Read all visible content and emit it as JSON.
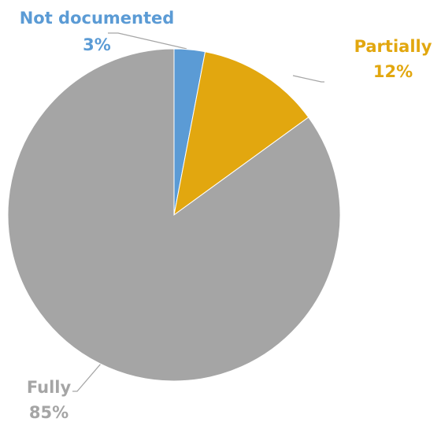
{
  "chart_data": {
    "type": "pie",
    "categories": [
      "Not documented",
      "Partially",
      "Fully"
    ],
    "values": [
      3,
      12,
      85
    ],
    "value_labels": [
      "3%",
      "12%",
      "85%"
    ],
    "colors": [
      "#5b9bd5",
      "#e2a70f",
      "#a5a5a5"
    ]
  }
}
